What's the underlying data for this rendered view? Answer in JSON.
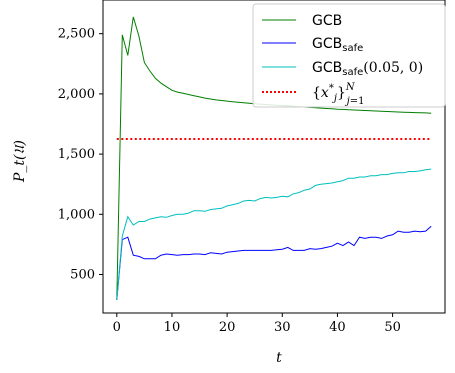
{
  "chart_data": {
    "type": "line",
    "title": "",
    "xlabel": "t",
    "ylabel": "P_t(𝔘)",
    "xlim": [
      -2.5,
      59.5
    ],
    "ylim": [
      180,
      2780
    ],
    "x_ticks": [
      0,
      10,
      20,
      30,
      40,
      50
    ],
    "y_ticks": [
      500,
      1000,
      1500,
      2000,
      2500
    ],
    "y_tick_labels": [
      "500",
      "1,000",
      "1,500",
      "2,000",
      "2,500"
    ],
    "x_tick_labels": [
      "0",
      "10",
      "20",
      "30",
      "40",
      "50"
    ],
    "grid": false,
    "legend_position": "top-right",
    "series": [
      {
        "name": "GCB",
        "color": "#007f00",
        "style": "solid",
        "values": [
          290,
          2490,
          2320,
          2640,
          2480,
          2260,
          2190,
          2130,
          2090,
          2060,
          2030,
          2015,
          2005,
          1995,
          1985,
          1975,
          1965,
          1958,
          1950,
          1945,
          1940,
          1935,
          1930,
          1926,
          1922,
          1918,
          1915,
          1912,
          1909,
          1906,
          1903,
          1900,
          1897,
          1894,
          1891,
          1888,
          1885,
          1882,
          1879,
          1876,
          1873,
          1871,
          1868,
          1866,
          1864,
          1862,
          1860,
          1858,
          1856,
          1854,
          1852,
          1850,
          1848,
          1846,
          1845,
          1844,
          1842,
          1840
        ]
      },
      {
        "name": "GCB_safe",
        "color": "#0000ff",
        "style": "solid",
        "values": [
          290,
          790,
          810,
          660,
          650,
          630,
          630,
          630,
          660,
          670,
          665,
          660,
          665,
          665,
          670,
          670,
          665,
          680,
          675,
          670,
          685,
          690,
          695,
          700,
          700,
          700,
          700,
          700,
          700,
          705,
          710,
          725,
          700,
          700,
          700,
          715,
          710,
          715,
          725,
          735,
          760,
          740,
          770,
          740,
          810,
          800,
          810,
          810,
          800,
          820,
          830,
          860,
          850,
          850,
          860,
          855,
          860,
          900
        ]
      },
      {
        "name": "GCB_safe(0.05,0)",
        "color": "#00bfbf",
        "style": "solid",
        "values": [
          290,
          820,
          980,
          910,
          940,
          940,
          960,
          970,
          980,
          975,
          990,
          1000,
          1000,
          1010,
          1030,
          1030,
          1025,
          1040,
          1045,
          1050,
          1070,
          1080,
          1090,
          1110,
          1115,
          1110,
          1130,
          1140,
          1135,
          1140,
          1150,
          1145,
          1170,
          1180,
          1200,
          1210,
          1240,
          1250,
          1255,
          1260,
          1270,
          1280,
          1300,
          1300,
          1310,
          1310,
          1320,
          1320,
          1330,
          1330,
          1340,
          1345,
          1345,
          1355,
          1355,
          1360,
          1370,
          1375
        ]
      },
      {
        "name": "{x_j*}_{j=1}^N",
        "color": "#ff0000",
        "style": "dotted",
        "values": [
          1625,
          1625
        ]
      }
    ]
  }
}
